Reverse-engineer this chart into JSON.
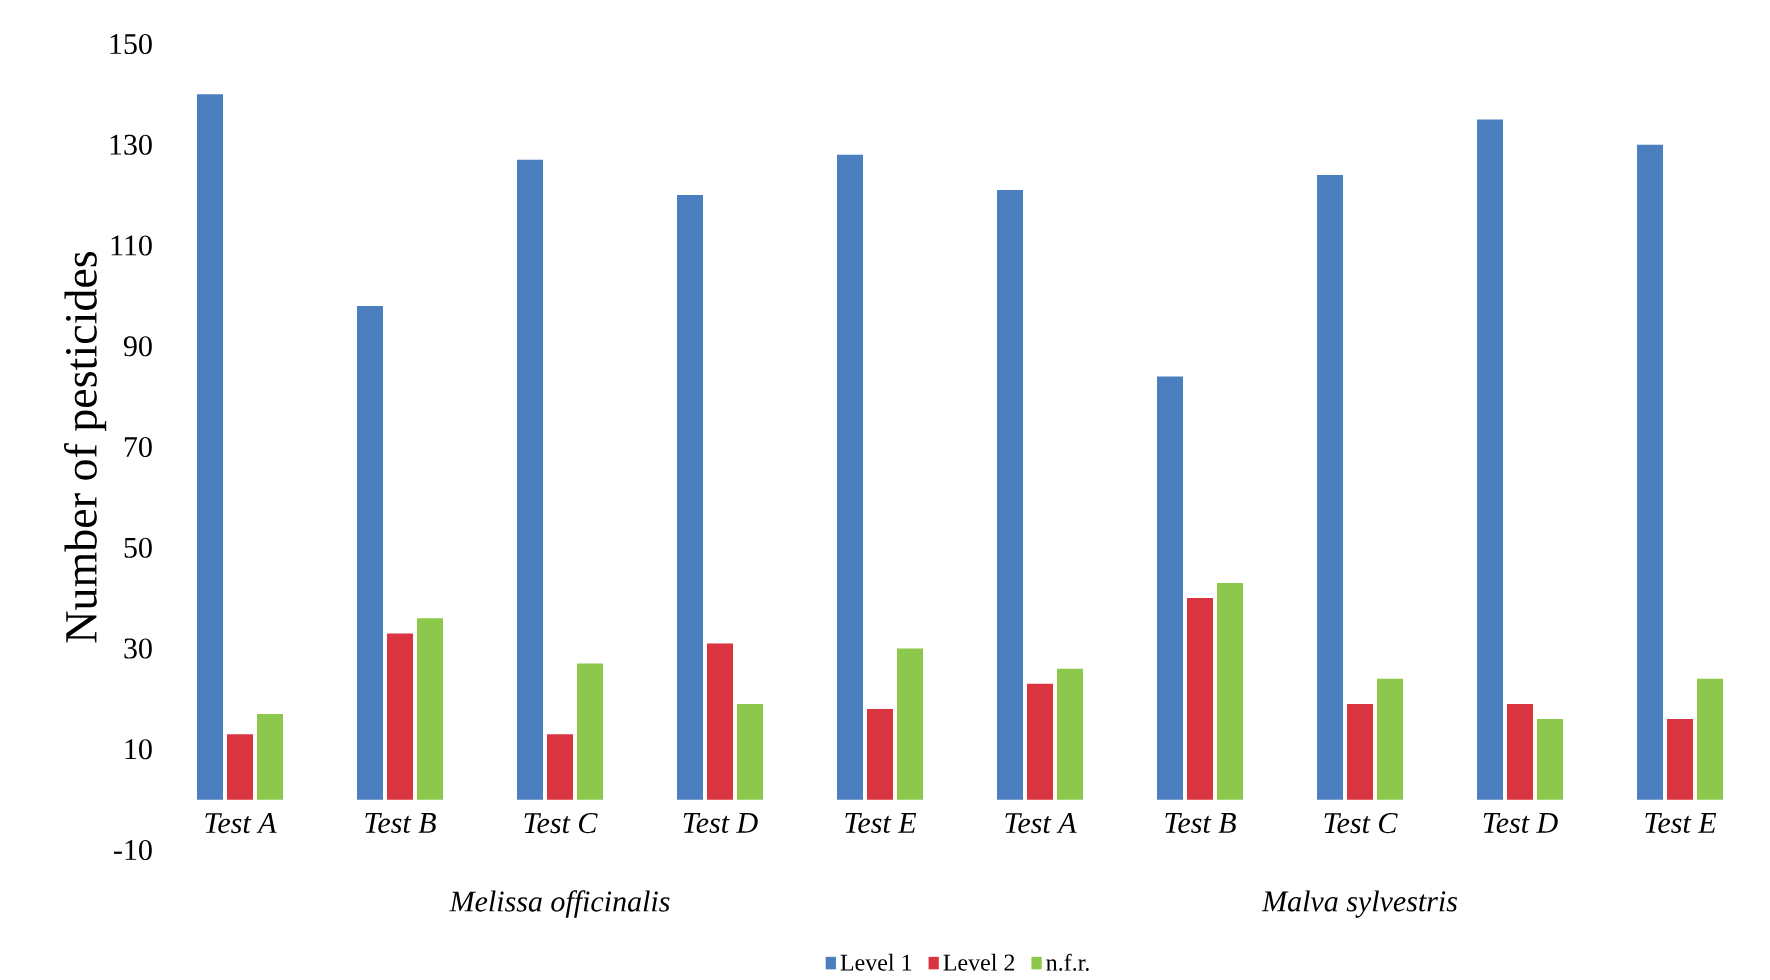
{
  "chart_data": {
    "type": "bar",
    "ylabel": "Number of pesticides",
    "categories": [
      "Test A",
      "Test B",
      "Test C",
      "Test D",
      "Test E",
      "Test A",
      "Test B",
      "Test C",
      "Test D",
      "Test E"
    ],
    "annotations": [
      "Melissa officinalis",
      "Malva sylvestris"
    ],
    "series": [
      {
        "name": "Level 1",
        "color": "#4a7ebf",
        "values": [
          140,
          98,
          127,
          120,
          128,
          121,
          84,
          124,
          135,
          130
        ]
      },
      {
        "name": "Level 2",
        "color": "#d9343f",
        "values": [
          13,
          33,
          13,
          31,
          18,
          23,
          40,
          19,
          19,
          16
        ]
      },
      {
        "name": "n.f.r.",
        "color": "#8cc84b",
        "values": [
          17,
          36,
          27,
          19,
          30,
          26,
          43,
          24,
          16,
          24
        ]
      }
    ],
    "ylim": [
      -10,
      150
    ],
    "yticks": [
      -10,
      10,
      30,
      50,
      70,
      90,
      110,
      130,
      150
    ],
    "grid": false,
    "legend": "bottom"
  }
}
